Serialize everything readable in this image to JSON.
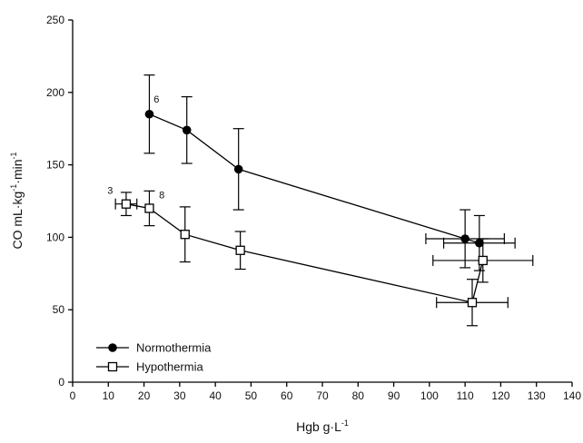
{
  "chart_data": {
    "type": "scatter",
    "xlabel": "Hgb  g·L",
    "xlabel_exponent": "-1",
    "ylabel": "CO  mL·kg",
    "ylabel_exponent_1": "-1",
    "ylabel_middle": "·min",
    "ylabel_exponent_2": "-1",
    "xlim": [
      0,
      140
    ],
    "ylim": [
      0,
      250
    ],
    "xticks": [
      0,
      10,
      20,
      30,
      40,
      50,
      60,
      70,
      80,
      90,
      100,
      110,
      120,
      130,
      140
    ],
    "yticks": [
      0,
      50,
      100,
      150,
      200,
      250
    ],
    "grid": false,
    "legend_position": "bottom-left",
    "series": [
      {
        "name": "Normothermia",
        "marker": "filled-circle",
        "color": "#000000",
        "points": [
          {
            "x": 21.5,
            "y": 185,
            "yerr": 27
          },
          {
            "x": 32,
            "y": 174,
            "yerr": 23
          },
          {
            "x": 46.5,
            "y": 147,
            "yerr": 28
          },
          {
            "x": 110,
            "y": 99,
            "xerr": 11,
            "yerr": 20
          },
          {
            "x": 114,
            "y": 96,
            "xerr": 10,
            "yerr": 19
          }
        ]
      },
      {
        "name": "Hypothermia",
        "marker": "open-square",
        "color": "#000000",
        "points": [
          {
            "x": 15,
            "y": 123,
            "xerr": 3,
            "yerr": 8
          },
          {
            "x": 21.5,
            "y": 120,
            "yerr": 12
          },
          {
            "x": 31.5,
            "y": 102,
            "yerr": 19
          },
          {
            "x": 47,
            "y": 91,
            "yerr": 13
          },
          {
            "x": 112,
            "y": 55,
            "xerr": 10,
            "yerr": 16
          },
          {
            "x": 115,
            "y": 84,
            "xerr": 14,
            "yerr": 15
          }
        ]
      }
    ],
    "annotations": [
      {
        "text": "6",
        "x": 23.5,
        "y": 193
      },
      {
        "text": "3",
        "x": 10.5,
        "y": 130
      },
      {
        "text": "8",
        "x": 25,
        "y": 127
      }
    ]
  }
}
